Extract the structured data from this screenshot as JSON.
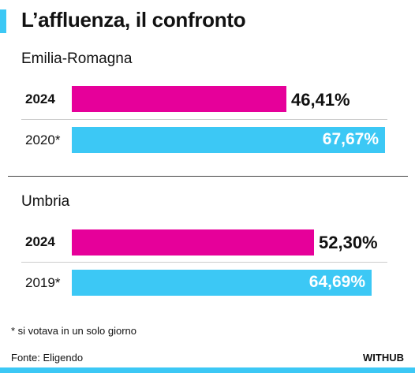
{
  "chart_data": {
    "type": "bar",
    "orientation": "horizontal",
    "title": "L’affluenza, il confronto",
    "groups": [
      {
        "name": "Emilia-Romagna",
        "bars": [
          {
            "label": "2024",
            "value": 46.41,
            "value_label": "46,41%",
            "color": "#e6009a",
            "bold": true
          },
          {
            "label": "2020*",
            "value": 67.67,
            "value_label": "67,67%",
            "color": "#3cc8f5",
            "bold": false
          }
        ]
      },
      {
        "name": "Umbria",
        "bars": [
          {
            "label": "2024",
            "value": 52.3,
            "value_label": "52,30%",
            "color": "#e6009a",
            "bold": true
          },
          {
            "label": "2019*",
            "value": 64.69,
            "value_label": "64,69%",
            "color": "#3cc8f5",
            "bold": false
          }
        ]
      }
    ],
    "xlim": [
      0,
      67.67
    ],
    "grid": false,
    "legend": "none"
  },
  "footnote": "* si votava in un solo giorno",
  "source": "Fonte: Eligendo",
  "brand": "WITHUB",
  "colors": {
    "accent": "#3cc8f5",
    "magenta": "#e6009a"
  }
}
